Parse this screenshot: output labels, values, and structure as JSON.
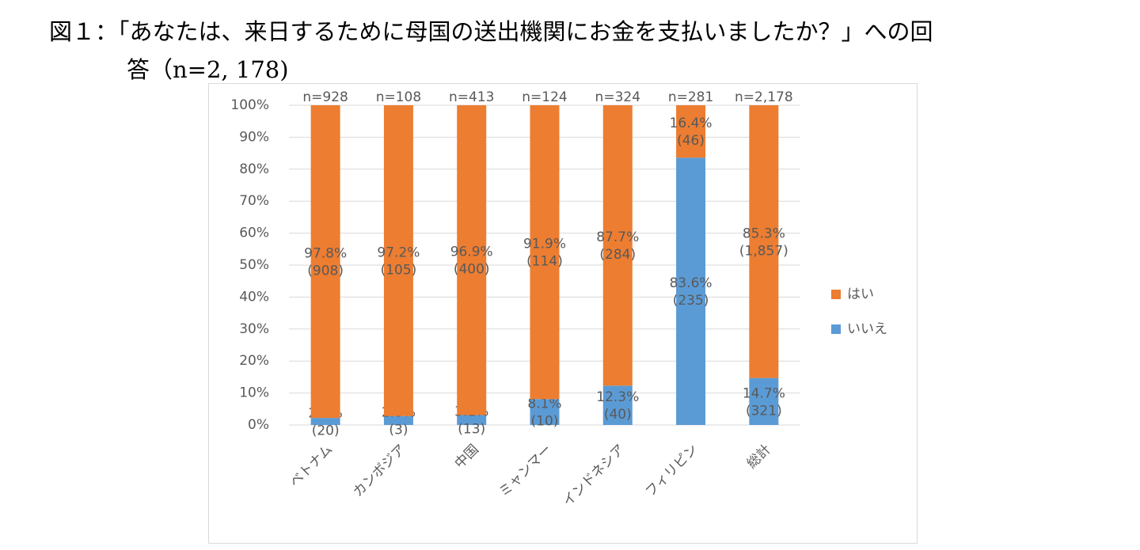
{
  "chart_data": {
    "type": "stacked-bar",
    "title": [
      "図１：「あなたは、来日するために母国の送出機関にお金を支払いましたか？」への回",
      "答（n=2, 178)"
    ],
    "categories": [
      "ベトナム",
      "カンボジア",
      "中国",
      "ミャンマー",
      "インドネシア",
      "フィリピン",
      "総計"
    ],
    "n_labels": [
      "n=928",
      "n=108",
      "n=413",
      "n=124",
      "n=324",
      "n=281",
      "n=2,178"
    ],
    "series": [
      {
        "name": "いいえ",
        "color": "#5b9bd5",
        "values": [
          2.2,
          2.8,
          3.1,
          8.1,
          12.3,
          83.6,
          14.7
        ],
        "value_labels": [
          "2.2%",
          "2.8%",
          "3.1%",
          "8.1%",
          "12.3%",
          "83.6%",
          "14.7%"
        ],
        "count_labels": [
          "(20)",
          "(3)",
          "(13)",
          "(10)",
          "(40)",
          "(235)",
          "(321)"
        ]
      },
      {
        "name": "はい",
        "color": "#ed7d31",
        "values": [
          97.8,
          97.2,
          96.9,
          91.9,
          87.7,
          16.4,
          85.3
        ],
        "value_labels": [
          "97.8%",
          "97.2%",
          "96.9%",
          "91.9%",
          "87.7%",
          "16.4%",
          "85.3%"
        ],
        "count_labels": [
          "(908)",
          "(105)",
          "(400)",
          "(114)",
          "(284)",
          "(46)",
          "(1,857)"
        ]
      }
    ],
    "ylim": [
      0,
      100
    ],
    "yticks": [
      {
        "value": 0,
        "label": "0%"
      },
      {
        "value": 10,
        "label": "10%"
      },
      {
        "value": 20,
        "label": "20%"
      },
      {
        "value": 30,
        "label": "30%"
      },
      {
        "value": 40,
        "label": "40%"
      },
      {
        "value": 50,
        "label": "50%"
      },
      {
        "value": 60,
        "label": "60%"
      },
      {
        "value": 70,
        "label": "70%"
      },
      {
        "value": 80,
        "label": "80%"
      },
      {
        "value": 90,
        "label": "90%"
      },
      {
        "value": 100,
        "label": "100%"
      }
    ],
    "grid": true,
    "legend": "right"
  }
}
